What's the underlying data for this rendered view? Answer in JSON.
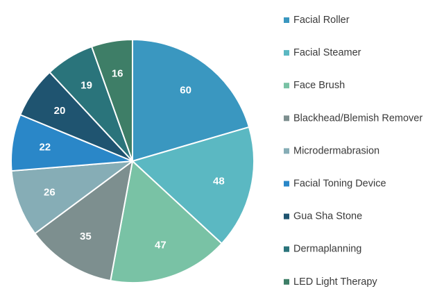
{
  "chart_data": {
    "type": "pie",
    "title": "",
    "start_angle_deg": 0,
    "direction": "clockwise",
    "legend_position": "right",
    "categories": [
      "Facial Roller",
      "Facial Steamer",
      "Face Brush",
      "Blackhead/Blemish Remover",
      "Microdermabrasion",
      "Facial Toning Device",
      "Gua Sha Stone",
      "Dermaplanning",
      "LED Light Therapy"
    ],
    "values": [
      60,
      48,
      47,
      35,
      26,
      22,
      20,
      19,
      16
    ],
    "colors": [
      "#3A97C0",
      "#5BB8C2",
      "#79C2A5",
      "#7D8F8F",
      "#86ADB6",
      "#2A87C8",
      "#1F5470",
      "#2A747B",
      "#3E7E67"
    ],
    "data_labels": [
      "60",
      "48",
      "47",
      "35",
      "26",
      "22",
      "20",
      "19",
      "16"
    ]
  }
}
